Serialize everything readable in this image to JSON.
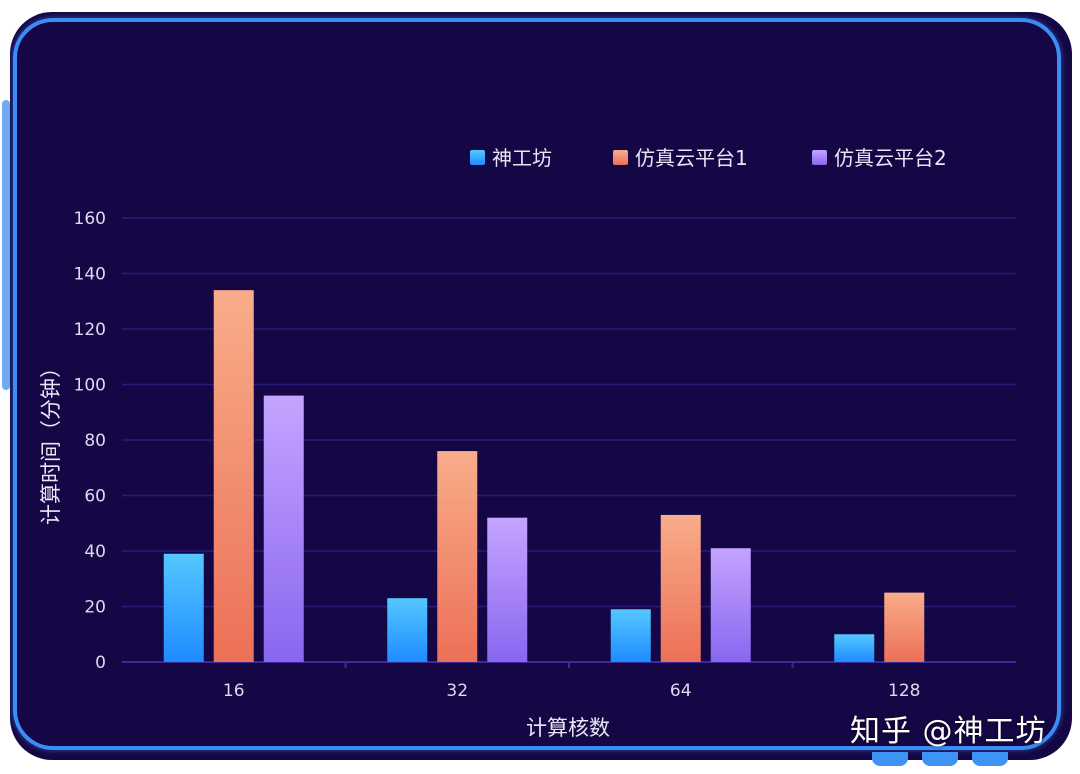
{
  "chart_data": {
    "type": "bar",
    "categories": [
      "16",
      "32",
      "64",
      "128"
    ],
    "series": [
      {
        "name": "神工坊",
        "values": [
          39,
          23,
          19,
          10
        ],
        "color_top": "#56c7ff",
        "color_bottom": "#1e8cff"
      },
      {
        "name": "仿真云平台1",
        "values": [
          134,
          76,
          53,
          25
        ],
        "color_top": "#f8ad8a",
        "color_bottom": "#ec7058"
      },
      {
        "name": "仿真云平台2",
        "values": [
          96,
          52,
          41,
          null
        ],
        "color_top": "#c4a4ff",
        "color_bottom": "#8a66f0"
      }
    ],
    "xlabel": "计算核数",
    "ylabel": "计算时间（分钟）",
    "ylim": [
      0,
      160
    ],
    "yticks": [
      "0",
      "20",
      "40",
      "60",
      "80",
      "100",
      "120",
      "140",
      "160"
    ],
    "grid": true,
    "legend_position": "top-right"
  },
  "watermark": "知乎 @神工坊",
  "colors": {
    "background": "#150745",
    "frame": "#3a8df5",
    "grid": "#2a1a7e"
  }
}
